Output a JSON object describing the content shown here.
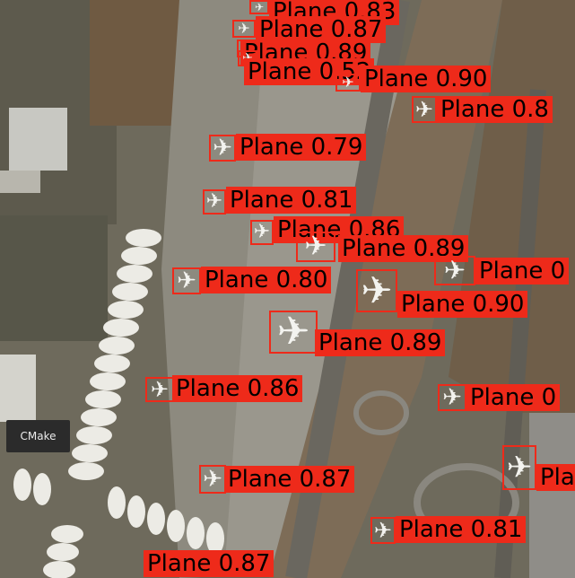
{
  "tooltip": {
    "text": "CMake"
  },
  "colors": {
    "box": "#ee2a1a",
    "label_text": "#000000"
  },
  "detections": [
    {
      "label": "Plane 0.83",
      "class": "Plane",
      "score": 0.83
    },
    {
      "label": "Plane 0.87",
      "class": "Plane",
      "score": 0.87
    },
    {
      "label": "Plane 0.89",
      "class": "Plane",
      "score": 0.89
    },
    {
      "label": "Plane 0.52",
      "class": "Plane",
      "score": 0.52
    },
    {
      "label": "Plane 0.90",
      "class": "Plane",
      "score": 0.9
    },
    {
      "label": "Plane 0.8",
      "class": "Plane",
      "score": 0.8
    },
    {
      "label": "Plane 0.79",
      "class": "Plane",
      "score": 0.79
    },
    {
      "label": "Plane 0.81",
      "class": "Plane",
      "score": 0.81
    },
    {
      "label": "Plane 0.86",
      "class": "Plane",
      "score": 0.86
    },
    {
      "label": "Plane 0.89",
      "class": "Plane",
      "score": 0.89
    },
    {
      "label": "Plane 0",
      "class": "Plane",
      "score": 0
    },
    {
      "label": "Plane 0.80",
      "class": "Plane",
      "score": 0.8
    },
    {
      "label": "Plane 0.90",
      "class": "Plane",
      "score": 0.9
    },
    {
      "label": "Plane 0.89",
      "class": "Plane",
      "score": 0.89
    },
    {
      "label": "Plane 0.86",
      "class": "Plane",
      "score": 0.86
    },
    {
      "label": "Plane 0",
      "class": "Plane",
      "score": 0
    },
    {
      "label": "Pla",
      "class": "Plane",
      "score": null
    },
    {
      "label": "Plane 0.87",
      "class": "Plane",
      "score": 0.87
    },
    {
      "label": "Plane 0.81",
      "class": "Plane",
      "score": 0.81
    },
    {
      "label": "Plane 0.87",
      "class": "Plane",
      "score": 0.87
    }
  ]
}
